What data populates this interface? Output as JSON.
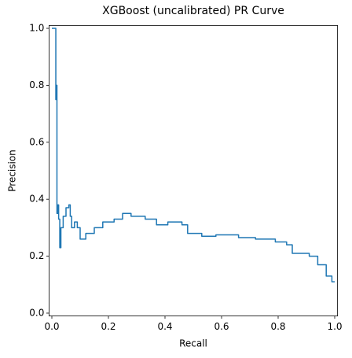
{
  "chart_data": {
    "type": "line",
    "title": "XGBoost (uncalibrated) PR Curve",
    "xlabel": "Recall",
    "ylabel": "Precision",
    "xlim": [
      -0.01,
      1.01
    ],
    "ylim": [
      -0.01,
      1.01
    ],
    "xticks": [
      {
        "value": 0,
        "label": "0.0"
      },
      0.2,
      0.4,
      0.6,
      0.8,
      {
        "value": 1,
        "label": "1.0"
      }
    ],
    "yticks": [
      {
        "value": 0,
        "label": "0.0"
      },
      0.2,
      0.4,
      0.6,
      0.8,
      {
        "value": 1,
        "label": "1.0"
      }
    ],
    "grid": false,
    "series": [
      {
        "color": "#1f77b4",
        "x": [
          0,
          0.014,
          0.014,
          0.016,
          0.016,
          0.018,
          0.018,
          0.021,
          0.021,
          0.024,
          0.024,
          0.028,
          0.028,
          0.032,
          0.032,
          0.04,
          0.04,
          0.05,
          0.05,
          0.06,
          0.06,
          0.065,
          0.065,
          0.07,
          0.07,
          0.08,
          0.08,
          0.09,
          0.09,
          0.1,
          0.1,
          0.12,
          0.12,
          0.15,
          0.15,
          0.18,
          0.18,
          0.22,
          0.22,
          0.25,
          0.25,
          0.28,
          0.28,
          0.33,
          0.33,
          0.37,
          0.37,
          0.41,
          0.41,
          0.46,
          0.46,
          0.48,
          0.48,
          0.53,
          0.53,
          0.58,
          0.58,
          0.66,
          0.66,
          0.72,
          0.72,
          0.79,
          0.79,
          0.83,
          0.83,
          0.85,
          0.85,
          0.91,
          0.91,
          0.94,
          0.94,
          0.97,
          0.97,
          0.99,
          0.99,
          1.0
        ],
        "values": [
          1.0,
          1.0,
          0.75,
          0.75,
          0.8,
          0.8,
          0.35,
          0.35,
          0.38,
          0.38,
          0.33,
          0.33,
          0.23,
          0.23,
          0.3,
          0.3,
          0.34,
          0.34,
          0.37,
          0.37,
          0.38,
          0.38,
          0.34,
          0.34,
          0.3,
          0.3,
          0.32,
          0.32,
          0.3,
          0.3,
          0.26,
          0.26,
          0.28,
          0.28,
          0.3,
          0.3,
          0.32,
          0.32,
          0.33,
          0.33,
          0.35,
          0.35,
          0.34,
          0.34,
          0.33,
          0.33,
          0.31,
          0.31,
          0.32,
          0.32,
          0.31,
          0.31,
          0.28,
          0.28,
          0.27,
          0.27,
          0.275,
          0.275,
          0.265,
          0.265,
          0.26,
          0.26,
          0.25,
          0.25,
          0.24,
          0.24,
          0.21,
          0.21,
          0.2,
          0.2,
          0.17,
          0.17,
          0.13,
          0.13,
          0.11,
          0.11
        ]
      }
    ]
  }
}
